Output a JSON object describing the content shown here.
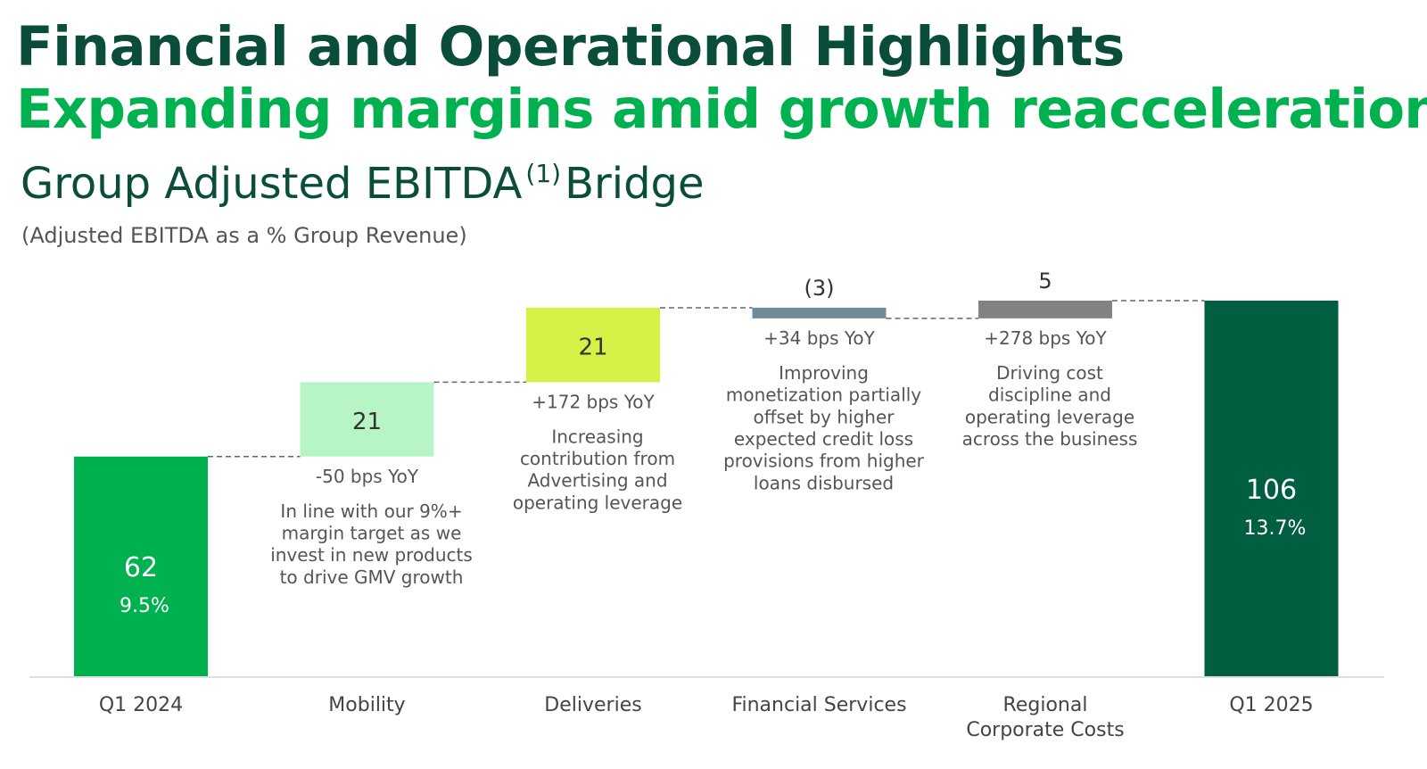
{
  "header": {
    "title": "Financial and Operational Highlights",
    "subtitle": "Expanding margins amid growth reacceleration"
  },
  "chart_data": {
    "type": "bar",
    "subtype": "waterfall",
    "title_main": "Group Adjusted EBITDA",
    "title_footnote": "(1)",
    "title_suffix": "Bridge",
    "subtitle": "(Adjusted EBITDA as a % Group Revenue)",
    "categories": [
      "Q1 2024",
      "Mobility",
      "Deliveries",
      "Financial Services",
      "Regional Corporate Costs",
      "Q1 2025"
    ],
    "category_lines": [
      [
        "Q1 2024"
      ],
      [
        "Mobility"
      ],
      [
        "Deliveries"
      ],
      [
        "Financial Services"
      ],
      [
        "Regional",
        "Corporate Costs"
      ],
      [
        "Q1 2025"
      ]
    ],
    "values": [
      62,
      21,
      21,
      -3,
      5,
      106
    ],
    "kinds": [
      "total",
      "delta",
      "delta",
      "delta",
      "delta",
      "total"
    ],
    "value_labels": [
      "62",
      "21",
      "21",
      "(3)",
      "5",
      "106"
    ],
    "margin_labels": [
      "9.5%",
      "",
      "",
      "",
      "",
      "13.7%"
    ],
    "yoy_labels": [
      "",
      "-50 bps YoY",
      "+172 bps YoY",
      "+34 bps YoY",
      "+278 bps YoY",
      ""
    ],
    "notes": [
      [],
      [
        "In line with our 9%+",
        "margin target as we",
        "invest in new products",
        "to drive GMV growth"
      ],
      [
        "Increasing",
        "contribution from",
        "Advertising and",
        "operating leverage"
      ],
      [
        "Improving",
        "monetization partially",
        "offset by higher",
        "expected credit loss",
        "provisions from higher",
        "loans disbursed"
      ],
      [
        "Driving cost",
        "discipline and",
        "operating leverage",
        "across the business"
      ],
      []
    ],
    "colors": [
      "#00b14f",
      "#b7f5c6",
      "#d7f047",
      "#6e8c96",
      "#828282",
      "#005f40"
    ],
    "label_colors": [
      "#ffffff",
      "#333333",
      "#333333",
      "#333333",
      "#333333",
      "#ffffff"
    ],
    "connectors": "dashed",
    "ylim": [
      0,
      106
    ],
    "axis_color": "#e0e0e0"
  }
}
